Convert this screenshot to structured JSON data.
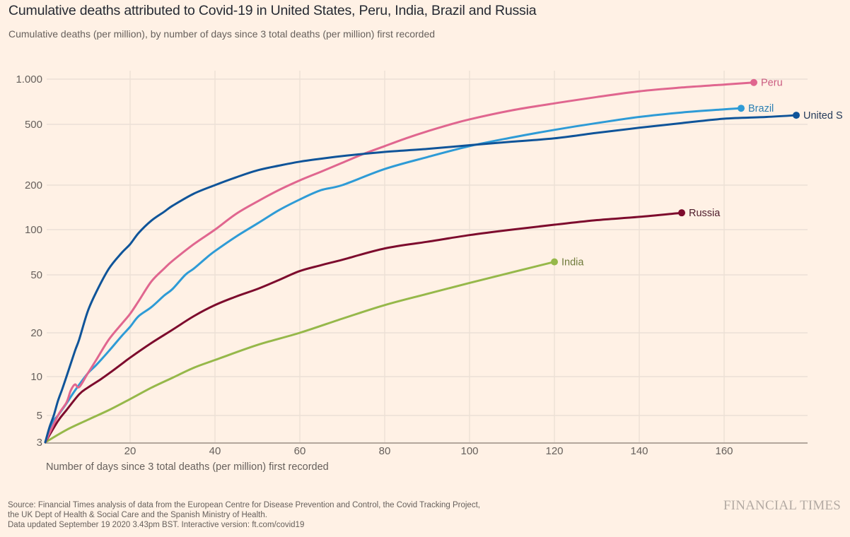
{
  "header": {
    "title": "Cumulative deaths attributed to Covid-19 in United States, Peru, India, Brazil and Russia",
    "subtitle": "Cumulative deaths (per million), by number of days since 3 total deaths (per million) first recorded"
  },
  "footer": {
    "source_lines": [
      "Source: Financial Times analysis of data from the European Centre for Disease Prevention and Control, the Covid Tracking Project,",
      "the UK Dept of Health & Social Care and the Spanish Ministry of Health.",
      "Data updated September 19 2020 3.43pm BST. Interactive version: ft.com/covid19"
    ],
    "brand": "FINANCIAL TIMES"
  },
  "chart_data": {
    "type": "line",
    "title": "Cumulative deaths attributed to Covid-19 in United States, Peru, India, Brazil and Russia",
    "subtitle": "Cumulative deaths (per million), by number of days since 3 total deaths (per million) first recorded",
    "xlabel": "Number of days since 3 total deaths (per million) first recorded",
    "ylabel": "",
    "y_scale": "log",
    "xlim": [
      0,
      180
    ],
    "ylim": [
      3,
      1000
    ],
    "x_ticks": [
      20,
      40,
      60,
      80,
      100,
      120,
      140,
      160
    ],
    "x_tick_labels": [
      "20",
      "40",
      "60",
      "80",
      "100",
      "120",
      "140",
      "160"
    ],
    "y_ticks": [
      3,
      5,
      10,
      20,
      50,
      100,
      200,
      500,
      1000
    ],
    "y_tick_labels": [
      "3",
      "5",
      "10",
      "20",
      "50",
      "100",
      "200",
      "500",
      "1.000"
    ],
    "grid": true,
    "legend": "direct-labels-at-line-end",
    "series": [
      {
        "name": "Peru",
        "label": "Peru",
        "color": "#e0668f",
        "x": [
          0,
          3,
          5,
          6,
          7,
          8,
          10,
          12,
          15,
          18,
          20,
          22,
          25,
          28,
          30,
          35,
          40,
          45,
          50,
          55,
          60,
          65,
          70,
          75,
          80,
          85,
          90,
          95,
          100,
          110,
          120,
          130,
          140,
          150,
          160,
          167
        ],
        "y": [
          3,
          5,
          6.3,
          7.8,
          8.7,
          8.3,
          10.5,
          13,
          18,
          23,
          27,
          33,
          45,
          55,
          62,
          80,
          100,
          128,
          155,
          185,
          215,
          245,
          280,
          320,
          360,
          405,
          450,
          495,
          540,
          620,
          690,
          760,
          830,
          880,
          920,
          950
        ]
      },
      {
        "name": "United States",
        "label": "United S",
        "color": "#0f5499",
        "x": [
          0,
          1,
          2,
          3,
          4,
          5,
          7,
          8,
          10,
          12,
          15,
          18,
          20,
          22,
          25,
          28,
          30,
          35,
          40,
          45,
          50,
          55,
          60,
          65,
          70,
          80,
          90,
          100,
          110,
          120,
          130,
          140,
          150,
          160,
          170,
          177
        ],
        "y": [
          3,
          4,
          5,
          6.5,
          8,
          10,
          15,
          18,
          28,
          38,
          55,
          70,
          80,
          95,
          115,
          132,
          145,
          175,
          200,
          225,
          250,
          268,
          285,
          298,
          310,
          330,
          345,
          365,
          385,
          405,
          440,
          475,
          510,
          545,
          560,
          575
        ]
      },
      {
        "name": "Brazil",
        "label": "Brazil",
        "color": "#2e9bd6",
        "x": [
          0,
          2,
          3,
          5,
          7,
          10,
          12,
          15,
          18,
          20,
          22,
          25,
          28,
          30,
          33,
          35,
          38,
          40,
          45,
          50,
          55,
          60,
          65,
          70,
          80,
          90,
          100,
          110,
          120,
          130,
          140,
          150,
          160,
          164
        ],
        "y": [
          3,
          4.5,
          5,
          6.2,
          7.8,
          10.5,
          12,
          15,
          19,
          22,
          26,
          30,
          36,
          40,
          50,
          55,
          65,
          72,
          90,
          110,
          135,
          160,
          185,
          200,
          255,
          305,
          360,
          410,
          460,
          510,
          560,
          600,
          630,
          640
        ]
      },
      {
        "name": "Russia",
        "label": "Russia",
        "color": "#7d0b2d",
        "x": [
          0,
          3,
          5,
          8,
          10,
          13,
          15,
          18,
          20,
          25,
          30,
          35,
          40,
          45,
          50,
          55,
          60,
          65,
          70,
          80,
          90,
          100,
          110,
          120,
          130,
          140,
          150
        ],
        "y": [
          3,
          4.5,
          5.5,
          7.3,
          8.2,
          9.5,
          10.5,
          12.2,
          13.5,
          17,
          21,
          26,
          31,
          35.5,
          40,
          46,
          53,
          58,
          63,
          75,
          83,
          92,
          100,
          108,
          116,
          122,
          130
        ]
      },
      {
        "name": "India",
        "label": "India",
        "color": "#96b84a",
        "x": [
          0,
          5,
          10,
          15,
          20,
          25,
          30,
          35,
          40,
          50,
          60,
          70,
          80,
          90,
          100,
          110,
          120
        ],
        "y": [
          3,
          3.8,
          4.6,
          5.5,
          6.7,
          8.2,
          9.8,
          11.5,
          13,
          16.5,
          20,
          25,
          31,
          37,
          44,
          52,
          61
        ]
      }
    ]
  }
}
